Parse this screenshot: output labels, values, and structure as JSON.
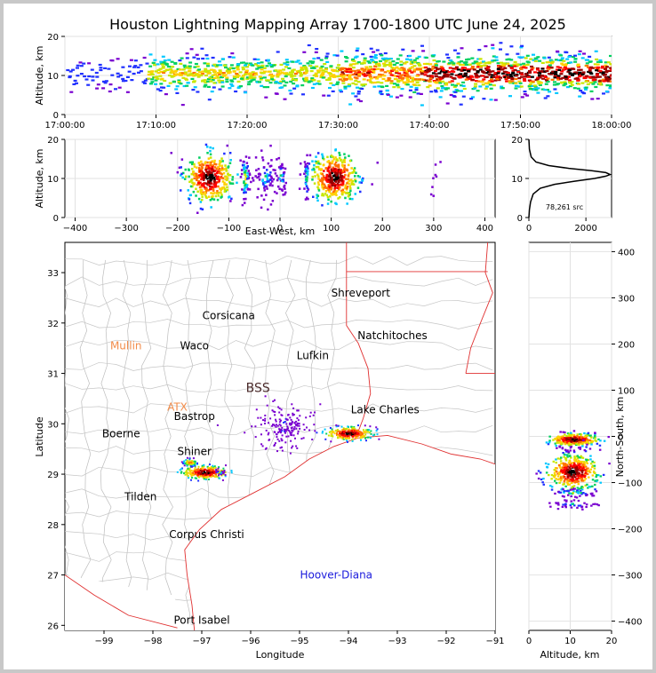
{
  "figure": {
    "title": "Houston Lightning Mapping Array 1700-1800 UTC June 24, 2025"
  },
  "chart_data": [
    {
      "type": "heatmap",
      "name": "altitude-time",
      "ylabel": "Altitude, km",
      "xlabel": "",
      "xlim": [
        "17:00:00",
        "18:00:00"
      ],
      "ylim": [
        0,
        20
      ],
      "xticks": [
        "17:00:00",
        "17:10:00",
        "17:20:00",
        "17:30:00",
        "17:40:00",
        "17:50:00",
        "18:00:00"
      ],
      "yticks": [
        0,
        10,
        20
      ]
    },
    {
      "type": "heatmap",
      "name": "altitude-east-west",
      "xlabel": "East-West, km",
      "ylabel": "Altitude, km",
      "xlim": [
        -420,
        420
      ],
      "ylim": [
        0,
        20
      ],
      "xticks": [
        -400,
        -300,
        -200,
        -100,
        0,
        100,
        200,
        300,
        400
      ],
      "yticks": [
        0,
        10,
        20
      ],
      "clusters_x_km": [
        -140,
        -70,
        -30,
        0,
        50,
        105,
        300
      ]
    },
    {
      "type": "line",
      "name": "altitude-histogram",
      "xlim": [
        0,
        2900
      ],
      "ylim": [
        0,
        20
      ],
      "xticks": [
        0,
        2000
      ],
      "yticks": [
        0,
        10,
        20
      ],
      "annotation": "78,261 src",
      "x": [
        0,
        20,
        60,
        150,
        400,
        900,
        1600,
        2300,
        2700,
        2850,
        2700,
        2200,
        1400,
        700,
        250,
        80,
        20,
        0
      ],
      "y": [
        0,
        2,
        4,
        6,
        7.5,
        8.5,
        9.3,
        10,
        10.6,
        11,
        11.5,
        12,
        12.6,
        13.3,
        14.2,
        15.5,
        17.5,
        20
      ]
    },
    {
      "type": "scatter",
      "name": "plan-view-map",
      "xlabel": "Longitude",
      "ylabel": "Latitude",
      "xlim": [
        -99.8,
        -91
      ],
      "ylim": [
        25.9,
        33.6
      ],
      "xticks": [
        -99,
        -98,
        -97,
        -96,
        -95,
        -94,
        -93,
        -92,
        -91
      ],
      "yticks": [
        26,
        27,
        28,
        29,
        30,
        31,
        32,
        33
      ],
      "places": [
        {
          "name": "Shreveport",
          "lon": -93.75,
          "lat": 32.6,
          "color": "#000000"
        },
        {
          "name": "Corsicana",
          "lon": -96.45,
          "lat": 32.15,
          "color": "#000000"
        },
        {
          "name": "Natchitoches",
          "lon": -93.1,
          "lat": 31.75,
          "color": "#000000"
        },
        {
          "name": "Mullin",
          "lon": -98.55,
          "lat": 31.55,
          "color": "#f28c4a"
        },
        {
          "name": "Waco",
          "lon": -97.15,
          "lat": 31.55,
          "color": "#000000"
        },
        {
          "name": "Lufkin",
          "lon": -94.73,
          "lat": 31.35,
          "color": "#000000"
        },
        {
          "name": "BSS",
          "lon": -95.85,
          "lat": 30.7,
          "color": "#4a2a2a"
        },
        {
          "name": "ATX",
          "lon": -97.5,
          "lat": 30.33,
          "color": "#f28c4a"
        },
        {
          "name": "Lake Charles",
          "lon": -93.25,
          "lat": 30.28,
          "color": "#000000"
        },
        {
          "name": "Bastrop",
          "lon": -97.15,
          "lat": 30.15,
          "color": "#000000"
        },
        {
          "name": "Boerne",
          "lon": -98.65,
          "lat": 29.8,
          "color": "#000000"
        },
        {
          "name": "Shiner",
          "lon": -97.15,
          "lat": 29.45,
          "color": "#000000"
        },
        {
          "name": "Tilden",
          "lon": -98.25,
          "lat": 28.55,
          "color": "#000000"
        },
        {
          "name": "Corpus Christi",
          "lon": -96.9,
          "lat": 27.8,
          "color": "#000000"
        },
        {
          "name": "Hoover-Diana",
          "lon": -94.25,
          "lat": 27.0,
          "color": "#1a1adc"
        },
        {
          "name": "Port Isabel",
          "lon": -97.0,
          "lat": 26.1,
          "color": "#000000"
        }
      ],
      "clusters": [
        {
          "lon": -94.0,
          "lat": 29.82,
          "intensity": "high"
        },
        {
          "lon": -96.95,
          "lat": 29.05,
          "intensity": "high"
        },
        {
          "lon": -97.25,
          "lat": 29.25,
          "intensity": "medium"
        },
        {
          "lon": -96.65,
          "lat": 29.05,
          "intensity": "low"
        },
        {
          "lon": -95.35,
          "lat": 29.85,
          "intensity": "sparse"
        },
        {
          "lon": -95.3,
          "lat": 30.05,
          "intensity": "sparse"
        }
      ]
    },
    {
      "type": "heatmap",
      "name": "north-south-altitude",
      "xlabel": "Altitude, km",
      "ylabel": "North-South, km",
      "xlim": [
        0,
        20
      ],
      "ylim": [
        -420,
        420
      ],
      "xticks": [
        0,
        10,
        20
      ],
      "yticks": [
        -400,
        -300,
        -200,
        -100,
        0,
        100,
        200,
        300,
        400
      ],
      "clusters_y_km": [
        -75,
        -5,
        -120,
        -145,
        -25
      ]
    }
  ]
}
